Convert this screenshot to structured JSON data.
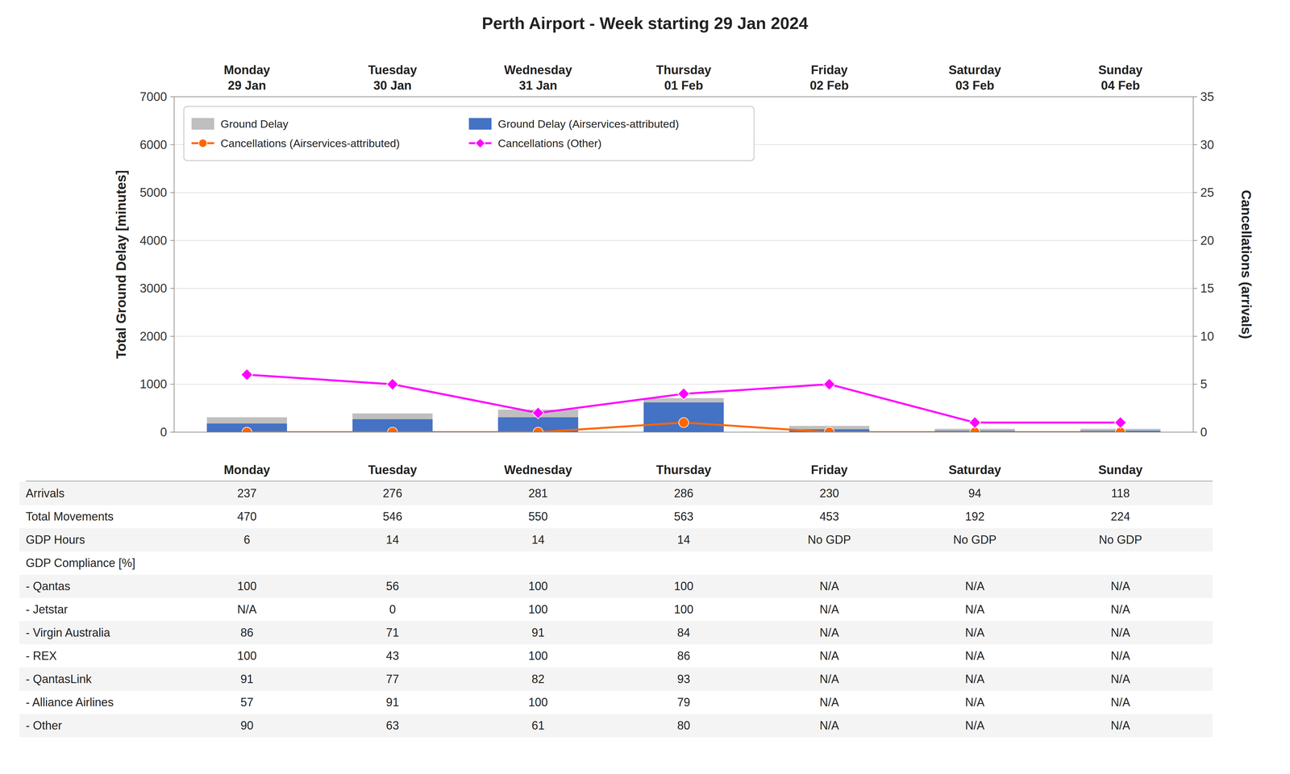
{
  "chart_data": [
    {
      "type": "bar",
      "title": "Perth Airport - Week starting 29 Jan 2024",
      "categories": [
        "Monday\n29 Jan",
        "Tuesday\n30 Jan",
        "Wednesday\n31 Jan",
        "Thursday\n01 Feb",
        "Friday\n02 Feb",
        "Saturday\n03 Feb",
        "Sunday\n04 Feb"
      ],
      "series": [
        {
          "name": "Ground Delay",
          "type": "bar",
          "color": "#BFBFBF",
          "values": [
            310,
            390,
            470,
            710,
            130,
            70,
            70
          ]
        },
        {
          "name": "Ground Delay (Airservices-attributed)",
          "type": "bar",
          "color": "#4472C4",
          "values": [
            180,
            270,
            310,
            620,
            60,
            30,
            30
          ]
        },
        {
          "name": "Cancellations (Airservices-attributed)",
          "type": "line",
          "axis": "y2",
          "marker": "circle",
          "color": "#FF6600",
          "values": [
            0,
            0,
            0,
            1,
            0,
            0,
            0
          ]
        },
        {
          "name": "Cancellations (Other)",
          "type": "line",
          "axis": "y2",
          "marker": "diamond",
          "color": "#FF00FF",
          "values": [
            6,
            5,
            2,
            4,
            5,
            1,
            1
          ]
        }
      ],
      "y_label": "Total Ground Delay [minutes]",
      "y2_label": "Cancellations (arrivals)",
      "ylim": [
        0,
        7000
      ],
      "yticks": [
        0,
        1000,
        2000,
        3000,
        4000,
        5000,
        6000,
        7000
      ],
      "y2lim": [
        0,
        35
      ],
      "y2ticks": [
        0,
        5,
        10,
        15,
        20,
        25,
        30,
        35
      ],
      "grid": true,
      "legend": "upper left"
    },
    {
      "type": "table",
      "columns": [
        "Monday",
        "Tuesday",
        "Wednesday",
        "Thursday",
        "Friday",
        "Saturday",
        "Sunday"
      ],
      "rows": [
        [
          "Arrivals",
          "237",
          "276",
          "281",
          "286",
          "230",
          "94",
          "118"
        ],
        [
          "Total Movements",
          "470",
          "546",
          "550",
          "563",
          "453",
          "192",
          "224"
        ],
        [
          "GDP Hours",
          "6",
          "14",
          "14",
          "14",
          "No GDP",
          "No GDP",
          "No GDP"
        ],
        [
          "GDP Compliance [%]",
          null,
          null,
          null,
          null,
          null,
          null,
          null
        ],
        [
          " - Qantas",
          "100",
          "56",
          "100",
          "100",
          "N/A",
          "N/A",
          "N/A"
        ],
        [
          " - Jetstar",
          "N/A",
          "0",
          "100",
          "100",
          "N/A",
          "N/A",
          "N/A"
        ],
        [
          " - Virgin Australia",
          "86",
          "71",
          "91",
          "84",
          "N/A",
          "N/A",
          "N/A"
        ],
        [
          " - REX",
          "100",
          "43",
          "100",
          "86",
          "N/A",
          "N/A",
          "N/A"
        ],
        [
          " - QantasLink",
          "91",
          "77",
          "82",
          "93",
          "N/A",
          "N/A",
          "N/A"
        ],
        [
          " - Alliance Airlines",
          "57",
          "91",
          "100",
          "79",
          "N/A",
          "N/A",
          "N/A"
        ],
        [
          " - Other",
          "90",
          "63",
          "61",
          "80",
          "N/A",
          "N/A",
          "N/A"
        ]
      ]
    }
  ]
}
